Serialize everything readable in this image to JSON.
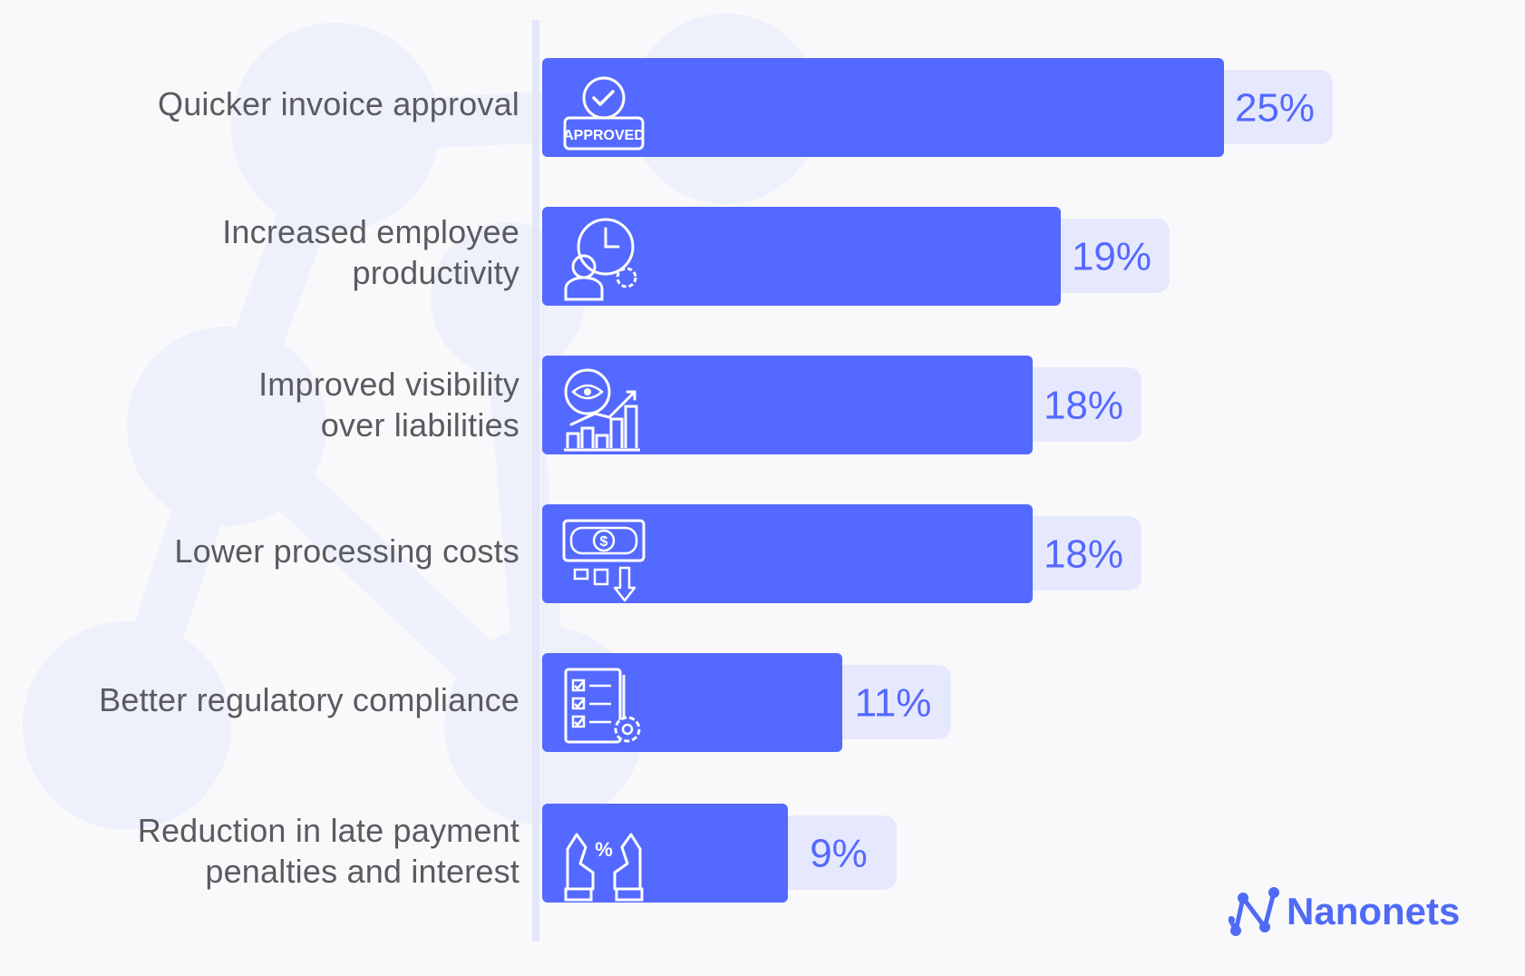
{
  "chart_data": {
    "type": "bar",
    "orientation": "horizontal",
    "categories": [
      "Quicker invoice approval",
      "Increased employee productivity",
      "Improved visibility over liabilities",
      "Lower processing costs",
      "Better regulatory compliance",
      "Reduction in late payment penalties and interest"
    ],
    "category_lines": [
      [
        "Quicker invoice approval"
      ],
      [
        "Increased employee",
        "productivity"
      ],
      [
        "Improved visibility",
        "over liabilities"
      ],
      [
        "Lower processing costs"
      ],
      [
        "Better regulatory compliance"
      ],
      [
        "Reduction in late payment",
        "penalties and interest"
      ]
    ],
    "values": [
      25,
      19,
      18,
      18,
      11,
      9
    ],
    "value_labels": [
      "25%",
      "19%",
      "18%",
      "18%",
      "11%",
      "9%"
    ],
    "unit": "%",
    "xlim": [
      0,
      25
    ],
    "grid": false,
    "legend": "none",
    "icons": [
      "approved-badge-icon",
      "employee-clock-gear-icon",
      "eye-growth-chart-icon",
      "dollar-bill-costs-down-icon",
      "checklist-gear-icon",
      "hands-percent-icon"
    ],
    "colors": {
      "bar": "#5469ff",
      "value_pill": "#e6e9fd",
      "axis_line": "#e4e7fb",
      "label_text": "#5a5a5f",
      "value_text": "#5469ff"
    }
  },
  "brand": {
    "name": "Nanonets",
    "color": "#4f6bf5"
  }
}
